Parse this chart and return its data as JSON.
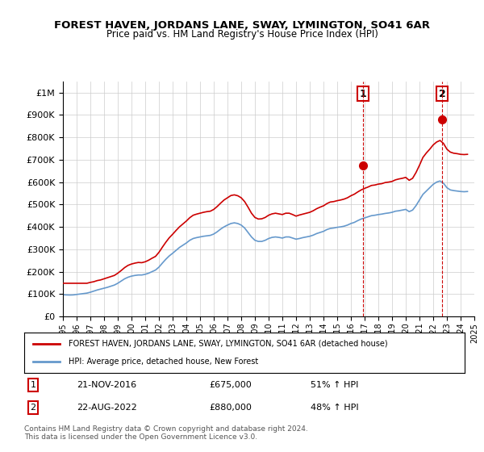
{
  "title": "FOREST HAVEN, JORDANS LANE, SWAY, LYMINGTON, SO41 6AR",
  "subtitle": "Price paid vs. HM Land Registry's House Price Index (HPI)",
  "legend_red": "FOREST HAVEN, JORDANS LANE, SWAY, LYMINGTON, SO41 6AR (detached house)",
  "legend_blue": "HPI: Average price, detached house, New Forest",
  "annotation1_label": "1",
  "annotation1_date": "21-NOV-2016",
  "annotation1_price": "£675,000",
  "annotation1_hpi": "51% ↑ HPI",
  "annotation1_year": 2016.9,
  "annotation1_value": 675000,
  "annotation2_label": "2",
  "annotation2_date": "22-AUG-2022",
  "annotation2_price": "£880,000",
  "annotation2_hpi": "48% ↑ HPI",
  "annotation2_year": 2022.65,
  "annotation2_value": 880000,
  "footer": "Contains HM Land Registry data © Crown copyright and database right 2024.\nThis data is licensed under the Open Government Licence v3.0.",
  "ylim": [
    0,
    1050000
  ],
  "red_color": "#cc0000",
  "blue_color": "#6699cc",
  "grid_color": "#cccccc",
  "background_color": "#ffffff",
  "hpi_years": [
    1995.0,
    1995.25,
    1995.5,
    1995.75,
    1996.0,
    1996.25,
    1996.5,
    1996.75,
    1997.0,
    1997.25,
    1997.5,
    1997.75,
    1998.0,
    1998.25,
    1998.5,
    1998.75,
    1999.0,
    1999.25,
    1999.5,
    1999.75,
    2000.0,
    2000.25,
    2000.5,
    2000.75,
    2001.0,
    2001.25,
    2001.5,
    2001.75,
    2002.0,
    2002.25,
    2002.5,
    2002.75,
    2003.0,
    2003.25,
    2003.5,
    2003.75,
    2004.0,
    2004.25,
    2004.5,
    2004.75,
    2005.0,
    2005.25,
    2005.5,
    2005.75,
    2006.0,
    2006.25,
    2006.5,
    2006.75,
    2007.0,
    2007.25,
    2007.5,
    2007.75,
    2008.0,
    2008.25,
    2008.5,
    2008.75,
    2009.0,
    2009.25,
    2009.5,
    2009.75,
    2010.0,
    2010.25,
    2010.5,
    2010.75,
    2011.0,
    2011.25,
    2011.5,
    2011.75,
    2012.0,
    2012.25,
    2012.5,
    2012.75,
    2013.0,
    2013.25,
    2013.5,
    2013.75,
    2014.0,
    2014.25,
    2014.5,
    2014.75,
    2015.0,
    2015.25,
    2015.5,
    2015.75,
    2016.0,
    2016.25,
    2016.5,
    2016.75,
    2017.0,
    2017.25,
    2017.5,
    2017.75,
    2018.0,
    2018.25,
    2018.5,
    2018.75,
    2019.0,
    2019.25,
    2019.5,
    2019.75,
    2020.0,
    2020.25,
    2020.5,
    2020.75,
    2021.0,
    2021.25,
    2021.5,
    2021.75,
    2022.0,
    2022.25,
    2022.5,
    2022.75,
    2023.0,
    2023.25,
    2023.5,
    2023.75,
    2024.0,
    2024.25,
    2024.5
  ],
  "hpi_values": [
    97000,
    96000,
    95500,
    96000,
    98000,
    100000,
    102000,
    104000,
    108000,
    113000,
    118000,
    122000,
    126000,
    130000,
    135000,
    140000,
    148000,
    158000,
    168000,
    175000,
    180000,
    183000,
    185000,
    185000,
    188000,
    193000,
    200000,
    207000,
    220000,
    238000,
    255000,
    270000,
    282000,
    295000,
    308000,
    318000,
    328000,
    340000,
    348000,
    352000,
    355000,
    358000,
    360000,
    362000,
    368000,
    378000,
    390000,
    400000,
    408000,
    415000,
    418000,
    415000,
    408000,
    395000,
    375000,
    355000,
    340000,
    335000,
    335000,
    340000,
    348000,
    353000,
    355000,
    353000,
    350000,
    355000,
    355000,
    350000,
    345000,
    348000,
    352000,
    355000,
    358000,
    363000,
    370000,
    375000,
    380000,
    388000,
    393000,
    395000,
    398000,
    400000,
    403000,
    408000,
    415000,
    420000,
    428000,
    435000,
    440000,
    445000,
    450000,
    452000,
    455000,
    457000,
    460000,
    462000,
    465000,
    470000,
    472000,
    475000,
    478000,
    468000,
    475000,
    495000,
    520000,
    545000,
    560000,
    575000,
    590000,
    600000,
    605000,
    595000,
    575000,
    565000,
    562000,
    560000,
    558000,
    557000,
    558000
  ],
  "red_years": [
    1995.0,
    1995.25,
    1995.5,
    1995.75,
    1996.0,
    1996.25,
    1996.5,
    1996.75,
    1997.0,
    1997.25,
    1997.5,
    1997.75,
    1998.0,
    1998.25,
    1998.5,
    1998.75,
    1999.0,
    1999.25,
    1999.5,
    1999.75,
    2000.0,
    2000.25,
    2000.5,
    2000.75,
    2001.0,
    2001.25,
    2001.5,
    2001.75,
    2002.0,
    2002.25,
    2002.5,
    2002.75,
    2003.0,
    2003.25,
    2003.5,
    2003.75,
    2004.0,
    2004.25,
    2004.5,
    2004.75,
    2005.0,
    2005.25,
    2005.5,
    2005.75,
    2006.0,
    2006.25,
    2006.5,
    2006.75,
    2007.0,
    2007.25,
    2007.5,
    2007.75,
    2008.0,
    2008.25,
    2008.5,
    2008.75,
    2009.0,
    2009.25,
    2009.5,
    2009.75,
    2010.0,
    2010.25,
    2010.5,
    2010.75,
    2011.0,
    2011.25,
    2011.5,
    2011.75,
    2012.0,
    2012.25,
    2012.5,
    2012.75,
    2013.0,
    2013.25,
    2013.5,
    2013.75,
    2014.0,
    2014.25,
    2014.5,
    2014.75,
    2015.0,
    2015.25,
    2015.5,
    2015.75,
    2016.0,
    2016.25,
    2016.5,
    2016.75,
    2017.0,
    2017.25,
    2017.5,
    2017.75,
    2018.0,
    2018.25,
    2018.5,
    2018.75,
    2019.0,
    2019.25,
    2019.5,
    2019.75,
    2020.0,
    2020.25,
    2020.5,
    2020.75,
    2021.0,
    2021.25,
    2021.5,
    2021.75,
    2022.0,
    2022.25,
    2022.5,
    2022.75,
    2023.0,
    2023.25,
    2023.5,
    2023.75,
    2024.0,
    2024.25,
    2024.5
  ],
  "red_values": [
    148000,
    148000,
    148000,
    148000,
    148000,
    148000,
    148000,
    148000,
    152000,
    155000,
    160000,
    163000,
    168000,
    173000,
    178000,
    183000,
    193000,
    205000,
    218000,
    228000,
    234000,
    238000,
    241000,
    240000,
    244000,
    251000,
    260000,
    268000,
    286000,
    309000,
    331000,
    351000,
    367000,
    384000,
    400000,
    413000,
    426000,
    441000,
    452000,
    457000,
    461000,
    465000,
    468000,
    470000,
    478000,
    491000,
    506000,
    520000,
    530000,
    540000,
    543000,
    539000,
    530000,
    513000,
    488000,
    461000,
    442000,
    435000,
    436000,
    442000,
    452000,
    458000,
    461000,
    458000,
    455000,
    461000,
    461000,
    455000,
    448000,
    453000,
    457000,
    461000,
    465000,
    472000,
    481000,
    488000,
    494000,
    504000,
    511000,
    513000,
    517000,
    520000,
    524000,
    530000,
    539000,
    546000,
    556000,
    565000,
    572000,
    578000,
    585000,
    587000,
    591000,
    593000,
    598000,
    600000,
    603000,
    610000,
    614000,
    617000,
    621000,
    608000,
    617000,
    643000,
    675000,
    710000,
    730000,
    747000,
    766000,
    779000,
    786000,
    773000,
    747000,
    734000,
    729000,
    727000,
    724000,
    723000,
    724000
  ]
}
